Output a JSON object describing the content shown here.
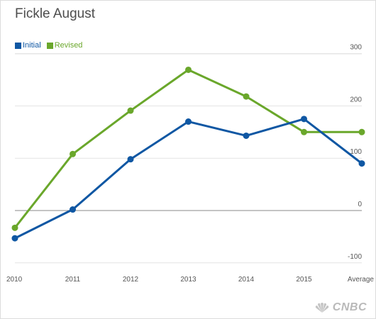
{
  "chart_data": {
    "type": "line",
    "title": "Fickle August",
    "categories": [
      "2010",
      "2011",
      "2012",
      "2013",
      "2014",
      "2015",
      "Average"
    ],
    "series": [
      {
        "name": "Initial",
        "color": "#0f57a3",
        "values": [
          -53,
          2,
          98,
          170,
          143,
          175,
          90
        ]
      },
      {
        "name": "Revised",
        "color": "#6aa72b",
        "values": [
          -33,
          108,
          191,
          269,
          218,
          150,
          150
        ]
      }
    ],
    "yticks": [
      -100,
      0,
      100,
      200,
      300
    ],
    "ylim": [
      -100,
      300
    ],
    "grid": true,
    "legend_position": "top-left",
    "xlabel": "",
    "ylabel": ""
  },
  "logo": {
    "text": "CNBC",
    "icon": "peacock-icon"
  }
}
